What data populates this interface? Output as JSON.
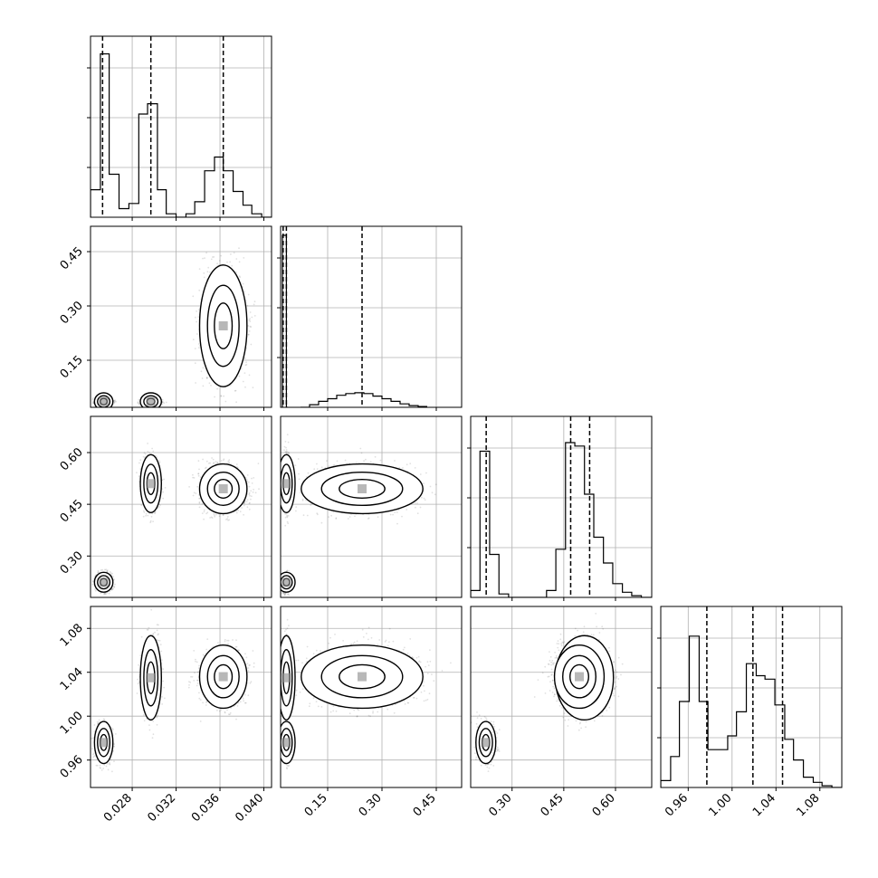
{
  "chart_data": {
    "type": "corner",
    "grid": true,
    "parameters": 4,
    "axis_ranges": [
      [
        0.0242,
        0.0407
      ],
      [
        0.02,
        0.52
      ],
      [
        0.18,
        0.705
      ],
      [
        0.935,
        1.1
      ]
    ],
    "tick_labels": [
      [
        "0.028",
        "0.032",
        "0.036",
        "0.040"
      ],
      [
        "0.15",
        "0.30",
        "0.45"
      ],
      [
        "0.30",
        "0.45",
        "0.60"
      ],
      [
        "0.96",
        "1.00",
        "1.04",
        "1.08"
      ]
    ],
    "tick_values": [
      [
        0.028,
        0.032,
        0.036,
        0.04
      ],
      [
        0.15,
        0.3,
        0.45
      ],
      [
        0.3,
        0.45,
        0.6
      ],
      [
        0.96,
        1.0,
        1.04,
        1.08
      ]
    ],
    "quantile_lines": [
      [
        0.0253,
        0.0297,
        0.0363
      ],
      [
        0.027,
        0.036,
        0.245
      ],
      [
        0.225,
        0.47,
        0.525
      ],
      [
        0.977,
        1.019,
        1.046
      ]
    ],
    "marginals": [
      {
        "bin_edges": [
          0.0242,
          0.0251,
          0.0259,
          0.0268,
          0.0277,
          0.0286,
          0.0294,
          0.0303,
          0.0311,
          0.032,
          0.0329,
          0.0337,
          0.0346,
          0.0355,
          0.0363,
          0.0372,
          0.0381,
          0.0389,
          0.0398,
          0.0407
        ],
        "counts": [
          0.16,
          0.95,
          0.25,
          0.05,
          0.08,
          0.6,
          0.66,
          0.16,
          0.02,
          0.0,
          0.02,
          0.09,
          0.27,
          0.35,
          0.27,
          0.15,
          0.07,
          0.02,
          0.0
        ]
      },
      {
        "bin_edges": [
          0.025,
          0.03,
          0.036,
          0.04
        ],
        "counts": [
          1.0,
          1.0,
          0.0
        ]
      },
      {
        "bin_edges": [
          0.18,
          0.207,
          0.235,
          0.262,
          0.29,
          0.317,
          0.345,
          0.372,
          0.4,
          0.427,
          0.455,
          0.482,
          0.51,
          0.537,
          0.565,
          0.592,
          0.62,
          0.647,
          0.675,
          0.705
        ],
        "counts": [
          0.04,
          0.85,
          0.25,
          0.02,
          0.0,
          0.0,
          0.0,
          0.0,
          0.04,
          0.28,
          0.9,
          0.88,
          0.6,
          0.35,
          0.2,
          0.08,
          0.03,
          0.01,
          0.0
        ]
      },
      {
        "bin_edges": [
          0.935,
          0.944,
          0.952,
          0.961,
          0.97,
          0.978,
          0.987,
          0.996,
          1.004,
          1.013,
          1.022,
          1.03,
          1.039,
          1.048,
          1.056,
          1.065,
          1.074,
          1.082,
          1.091,
          1.1
        ],
        "counts": [
          0.04,
          0.18,
          0.5,
          0.88,
          0.5,
          0.22,
          0.22,
          0.3,
          0.44,
          0.72,
          0.65,
          0.63,
          0.48,
          0.28,
          0.16,
          0.06,
          0.03,
          0.01,
          0.0
        ]
      }
    ],
    "marginal_extras": [
      {
        "bins": [
          [
            0.075,
            0.1,
            0.0
          ],
          [
            0.1,
            0.125,
            0.015
          ],
          [
            0.125,
            0.15,
            0.035
          ],
          [
            0.15,
            0.175,
            0.05
          ],
          [
            0.175,
            0.2,
            0.07
          ],
          [
            0.2,
            0.225,
            0.08
          ],
          [
            0.225,
            0.25,
            0.085
          ],
          [
            0.25,
            0.275,
            0.08
          ],
          [
            0.275,
            0.3,
            0.065
          ],
          [
            0.3,
            0.325,
            0.05
          ],
          [
            0.325,
            0.35,
            0.035
          ],
          [
            0.35,
            0.375,
            0.02
          ],
          [
            0.375,
            0.4,
            0.01
          ],
          [
            0.4,
            0.425,
            0.005
          ]
        ],
        "param": 1
      }
    ],
    "clusters": [
      {
        "center": [
          0.0254,
          0.036,
          0.224,
          0.976
        ],
        "sd": [
          0.00035,
          0.004,
          0.012,
          0.008
        ]
      },
      {
        "center": [
          0.0297,
          0.036,
          0.51,
          1.035
        ],
        "sd": [
          0.0004,
          0.004,
          0.035,
          0.016
        ]
      },
      {
        "center": [
          0.0363,
          0.245,
          0.495,
          1.036
        ],
        "sd": [
          0.0009,
          0.07,
          0.03,
          0.012
        ]
      }
    ]
  }
}
